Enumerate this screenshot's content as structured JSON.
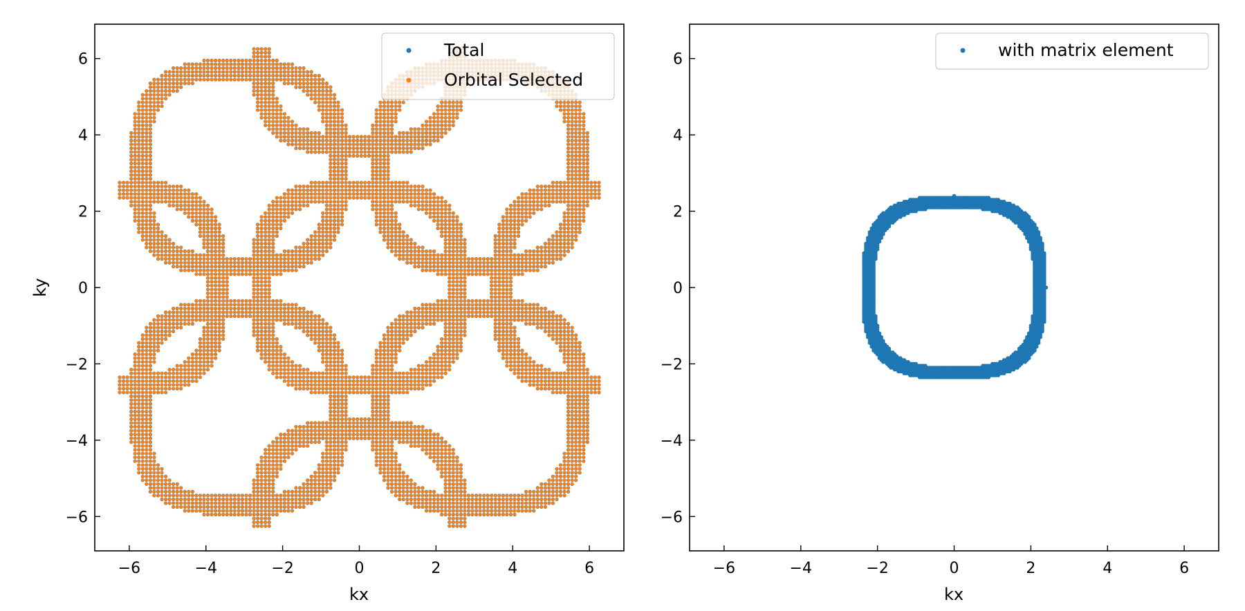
{
  "chart_data": [
    {
      "type": "scatter",
      "xlabel": "kx",
      "ylabel": "ky",
      "xlim": [
        -6.9,
        6.9
      ],
      "ylim": [
        -6.9,
        6.9
      ],
      "xticks": [
        -6,
        -4,
        -2,
        0,
        2,
        4,
        6
      ],
      "yticks": [
        -6,
        -4,
        -2,
        0,
        2,
        4,
        6
      ],
      "grid": false,
      "legend_position": "top-right",
      "series": [
        {
          "name": "Total",
          "color": "#1f77b4",
          "shape": "square lattice of diamond-shaped band contours centred on (0, ±π), (±π, 0) and corners; point grid step 0.1 in k"
        },
        {
          "name": "Orbital Selected",
          "color": "#ff7f0e",
          "shape": "same point set as Total, drawn on top"
        }
      ]
    },
    {
      "type": "scatter",
      "xlabel": "kx",
      "ylabel": "",
      "xlim": [
        -6.9,
        6.9
      ],
      "ylim": [
        -6.9,
        6.9
      ],
      "xticks": [
        -6,
        -4,
        -2,
        0,
        2,
        4,
        6
      ],
      "yticks": [
        -6,
        -4,
        -2,
        0,
        2,
        4,
        6
      ],
      "grid": false,
      "legend_position": "top-right",
      "series": [
        {
          "name": "with matrix element",
          "color": "#1f77b4",
          "shape": "rounded-diamond ring centred at (0, 0), outer radius ~2.4, band width ~0.3"
        }
      ]
    }
  ]
}
